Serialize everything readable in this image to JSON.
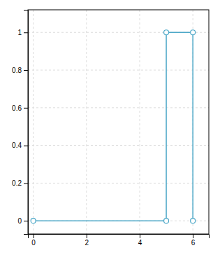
{
  "chart_data": {
    "type": "line",
    "x": [
      0,
      5,
      5,
      6,
      6
    ],
    "series": [
      {
        "values": [
          0,
          0,
          1,
          1,
          0
        ],
        "color": "#4DA8C8",
        "marker": "circle"
      }
    ],
    "xlim": [
      -0.2,
      6.6
    ],
    "ylim": [
      -0.07,
      1.12
    ],
    "xticks": [
      0,
      2,
      4,
      6
    ],
    "yticks": [
      0,
      0.2,
      0.4,
      0.6,
      0.8,
      1
    ],
    "grid": true
  }
}
